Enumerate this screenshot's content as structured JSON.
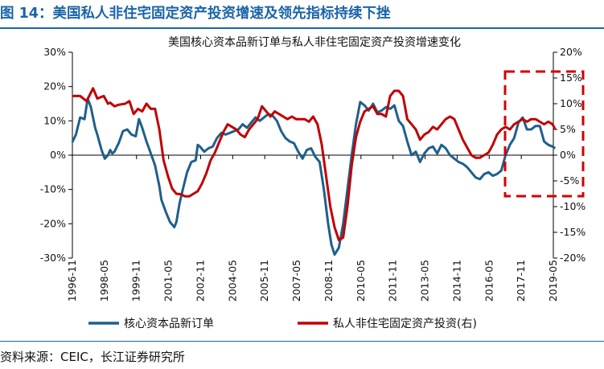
{
  "figure": {
    "title": "图 14：美国私人非住宅固定资产投资增速及领先指标持续下挫",
    "source": "资料来源：CEIC，长江证券研究所"
  },
  "colors": {
    "series1": "#1f5f8b",
    "series2": "#c00000",
    "highlight": "#d40000",
    "axis": "#000000"
  },
  "chart_data": {
    "type": "line",
    "title": "美国核心资本品新订单与私人非住宅固定资产投资增速变化",
    "x_ticks": [
      "1996-11",
      "1998-05",
      "1999-11",
      "2001-05",
      "2002-11",
      "2004-05",
      "2005-11",
      "2007-05",
      "2008-11",
      "2010-05",
      "2011-11",
      "2013-05",
      "2014-11",
      "2016-05",
      "2017-11",
      "2019-05"
    ],
    "x_range": [
      "1996-11",
      "2019-05"
    ],
    "y_left": {
      "range": [
        -30,
        30
      ],
      "ticks": [
        "30%",
        "20%",
        "10%",
        "0%",
        "-10%",
        "-20%",
        "-30%"
      ]
    },
    "y_right": {
      "range": [
        -20,
        20
      ],
      "ticks": [
        "20%",
        "15%",
        "10%",
        "5%",
        "0%",
        "-5%",
        "-10%",
        "-15%",
        "-20%"
      ]
    },
    "series": [
      {
        "name": "核心资本品新订单",
        "axis": "left",
        "x": [
          1996.83,
          1997.0,
          1997.2,
          1997.4,
          1997.55,
          1997.7,
          1997.9,
          1998.0,
          1998.2,
          1998.35,
          1998.5,
          1998.6,
          1998.7,
          1998.8,
          1999.0,
          1999.2,
          1999.4,
          1999.6,
          1999.8,
          1999.95,
          2000.1,
          2000.3,
          2000.5,
          2000.7,
          2000.9,
          2001.0,
          2001.2,
          2001.4,
          2001.6,
          2001.7,
          2001.85,
          2002.0,
          2002.2,
          2002.4,
          2002.6,
          2002.7,
          2002.8,
          2003.0,
          2003.2,
          2003.4,
          2003.6,
          2003.8,
          2004.0,
          2004.2,
          2004.4,
          2004.6,
          2004.8,
          2005.0,
          2005.2,
          2005.4,
          2005.6,
          2005.8,
          2006.0,
          2006.2,
          2006.4,
          2006.6,
          2006.8,
          2007.0,
          2007.2,
          2007.4,
          2007.6,
          2007.8,
          2008.0,
          2008.2,
          2008.4,
          2008.6,
          2008.8,
          2008.95,
          2009.1,
          2009.3,
          2009.5,
          2009.7,
          2009.9,
          2010.1,
          2010.3,
          2010.5,
          2010.7,
          2010.9,
          2011.1,
          2011.3,
          2011.5,
          2011.7,
          2011.9,
          2012.1,
          2012.3,
          2012.5,
          2012.7,
          2012.9,
          2013.1,
          2013.3,
          2013.5,
          2013.7,
          2013.9,
          2014.1,
          2014.3,
          2014.5,
          2014.7,
          2014.9,
          2015.1,
          2015.3,
          2015.5,
          2015.7,
          2015.9,
          2016.1,
          2016.3,
          2016.5,
          2016.7,
          2016.9,
          2017.1,
          2017.3,
          2017.5,
          2017.7,
          2017.9,
          2018.1,
          2018.3,
          2018.5,
          2018.7,
          2018.9,
          2019.1,
          2019.3,
          2019.42
        ],
        "values": [
          3.8,
          6.0,
          11.0,
          10.5,
          16.5,
          14.0,
          8.0,
          6.0,
          1.5,
          -1.0,
          0.0,
          1.5,
          0.5,
          1.0,
          3.5,
          7.0,
          7.5,
          6.0,
          5.5,
          10.5,
          8.0,
          4.0,
          0.5,
          -3.0,
          -9.0,
          -13.0,
          -16.5,
          -19.5,
          -21.0,
          -19.5,
          -14.0,
          -10.0,
          -5.0,
          -2.0,
          -1.5,
          3.0,
          2.5,
          1.0,
          2.0,
          2.5,
          5.0,
          6.5,
          6.0,
          6.5,
          7.0,
          7.5,
          9.0,
          8.0,
          9.5,
          11.0,
          10.0,
          11.0,
          12.0,
          11.5,
          10.0,
          7.0,
          5.0,
          4.0,
          3.5,
          1.0,
          -1.0,
          1.5,
          2.0,
          -0.5,
          -2.0,
          -10.0,
          -20.0,
          -26.0,
          -29.0,
          -27.0,
          -20.0,
          -10.0,
          0.0,
          9.0,
          15.5,
          14.5,
          13.0,
          15.0,
          12.5,
          13.0,
          14.0,
          13.5,
          14.5,
          10.0,
          8.5,
          4.0,
          0.0,
          1.0,
          -2.0,
          0.5,
          2.0,
          2.5,
          0.5,
          3.0,
          2.0,
          0.0,
          -1.0,
          -2.0,
          -2.5,
          -3.5,
          -5.0,
          -6.5,
          -7.0,
          -5.5,
          -5.0,
          -6.0,
          -5.5,
          -4.5,
          0.0,
          3.0,
          5.0,
          9.5,
          11.0,
          7.5,
          7.5,
          8.5,
          8.5,
          4.0,
          3.0,
          2.5,
          2.0
        ]
      },
      {
        "name": "私人非住宅固定资产投资(右)",
        "axis": "right",
        "x": [
          1996.83,
          1997.2,
          1997.5,
          1997.8,
          1998.0,
          1998.3,
          1998.5,
          1998.6,
          1998.8,
          1999.0,
          1999.3,
          1999.5,
          1999.7,
          1999.9,
          2000.1,
          2000.3,
          2000.5,
          2000.7,
          2000.9,
          2001.1,
          2001.3,
          2001.5,
          2001.7,
          2001.9,
          2002.1,
          2002.3,
          2002.5,
          2002.7,
          2002.9,
          2003.1,
          2003.3,
          2003.5,
          2003.7,
          2003.9,
          2004.1,
          2004.3,
          2004.5,
          2004.7,
          2004.9,
          2005.1,
          2005.3,
          2005.5,
          2005.7,
          2005.9,
          2006.1,
          2006.3,
          2006.5,
          2006.7,
          2006.9,
          2007.1,
          2007.3,
          2007.5,
          2007.7,
          2007.9,
          2008.1,
          2008.3,
          2008.5,
          2008.7,
          2008.9,
          2009.1,
          2009.3,
          2009.5,
          2009.7,
          2009.9,
          2010.1,
          2010.3,
          2010.5,
          2010.7,
          2010.9,
          2011.1,
          2011.3,
          2011.5,
          2011.7,
          2011.9,
          2012.1,
          2012.3,
          2012.5,
          2012.7,
          2012.9,
          2013.1,
          2013.3,
          2013.5,
          2013.7,
          2013.9,
          2014.1,
          2014.3,
          2014.5,
          2014.7,
          2014.9,
          2015.1,
          2015.3,
          2015.5,
          2015.7,
          2015.9,
          2016.1,
          2016.3,
          2016.5,
          2016.7,
          2016.9,
          2017.1,
          2017.3,
          2017.5,
          2017.7,
          2017.9,
          2018.1,
          2018.3,
          2018.5,
          2018.7,
          2018.9,
          2019.1,
          2019.3,
          2019.42
        ],
        "values": [
          11.5,
          11.5,
          10.5,
          13.0,
          11.0,
          11.5,
          10.0,
          10.2,
          9.5,
          9.8,
          10.0,
          10.5,
          8.0,
          9.0,
          8.5,
          10.0,
          9.0,
          9.0,
          5.0,
          -1.0,
          -4.0,
          -6.5,
          -7.5,
          -7.6,
          -8.0,
          -8.0,
          -7.5,
          -7.0,
          -5.5,
          -3.5,
          -1.0,
          0.5,
          2.5,
          4.5,
          6.0,
          5.5,
          5.0,
          4.0,
          3.5,
          5.0,
          6.0,
          7.0,
          9.5,
          8.5,
          7.5,
          8.5,
          8.0,
          7.5,
          7.0,
          7.5,
          7.0,
          7.0,
          7.0,
          6.5,
          7.5,
          6.0,
          2.0,
          -4.0,
          -10.0,
          -14.0,
          -16.5,
          -16.0,
          -10.0,
          -2.0,
          3.5,
          6.5,
          8.5,
          9.0,
          9.5,
          8.0,
          8.0,
          7.5,
          11.5,
          12.5,
          12.5,
          11.5,
          7.0,
          6.0,
          5.0,
          3.0,
          4.0,
          4.5,
          5.5,
          5.0,
          6.0,
          7.0,
          7.5,
          7.0,
          5.0,
          3.0,
          1.5,
          0.0,
          -0.5,
          -0.5,
          0.0,
          0.5,
          2.0,
          4.0,
          5.0,
          5.5,
          5.0,
          6.0,
          6.5,
          7.0,
          6.5,
          7.0,
          7.0,
          6.5,
          6.0,
          6.5,
          6.0,
          5.0
        ]
      }
    ],
    "legend": {
      "position": "bottom"
    },
    "grid": false
  }
}
